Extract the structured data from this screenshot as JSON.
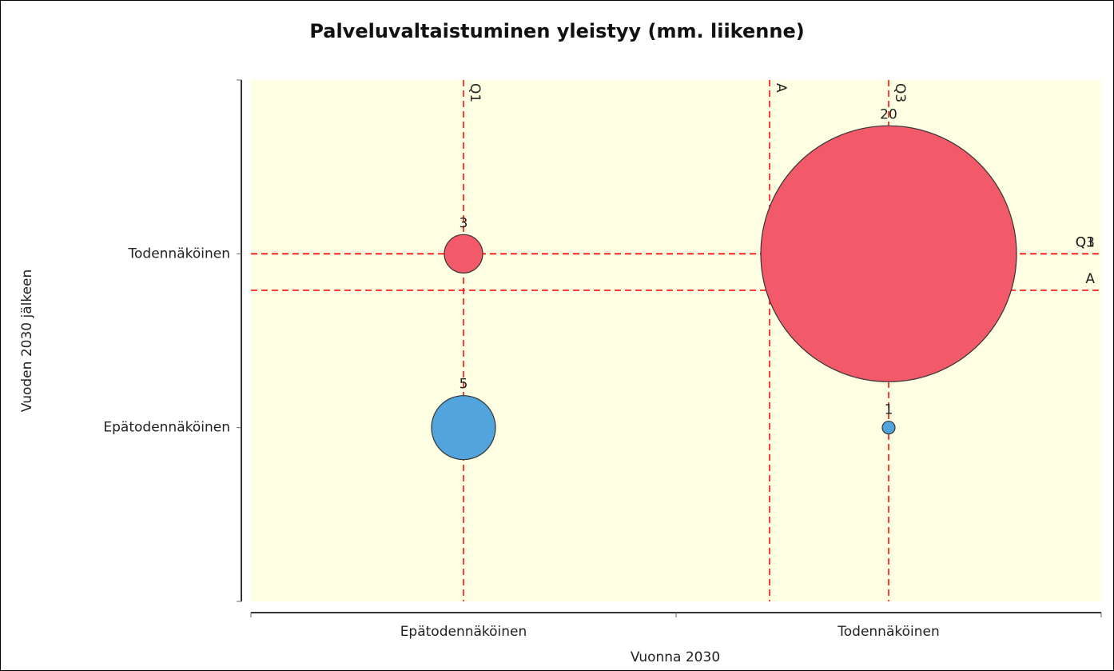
{
  "chart_data": {
    "type": "bubble",
    "title": "Palveluvaltaistuminen yleistyy (mm. liikenne)",
    "x_label": "Vuonna 2030",
    "y_label": "Vuoden 2030 jälkeen",
    "xlim": [
      0,
      4
    ],
    "xticks": [
      {
        "value": 1,
        "label": "Epätodennäköinen"
      },
      {
        "value": 3,
        "label": "Todennäköinen"
      }
    ],
    "ylim": [
      0,
      3
    ],
    "yticks": [
      {
        "value": 1,
        "label": "Epätodennäköinen"
      },
      {
        "value": 2,
        "label": "Todennäköinen"
      }
    ],
    "background": "#fefee2",
    "series": [
      {
        "color": "#f25a6a",
        "x": [
          1,
          3
        ],
        "y": [
          2,
          2
        ],
        "sizes": [
          3,
          20
        ]
      },
      {
        "color": "#52a5dc",
        "x": [
          1,
          3
        ],
        "y": [
          1,
          1
        ],
        "sizes": [
          5,
          1
        ]
      }
    ],
    "reference_lines": [
      {
        "axis": "x",
        "value": 1,
        "label": "Q1"
      },
      {
        "axis": "x",
        "value": 2.44,
        "label": "A"
      },
      {
        "axis": "x",
        "value": 3,
        "label": "Q3"
      },
      {
        "axis": "y",
        "value": 2,
        "label": "Q1"
      },
      {
        "axis": "y",
        "value": 2,
        "label": "Q3"
      },
      {
        "axis": "y",
        "value": 1.79,
        "label": "A"
      }
    ],
    "reference_color": "#ff0000"
  }
}
